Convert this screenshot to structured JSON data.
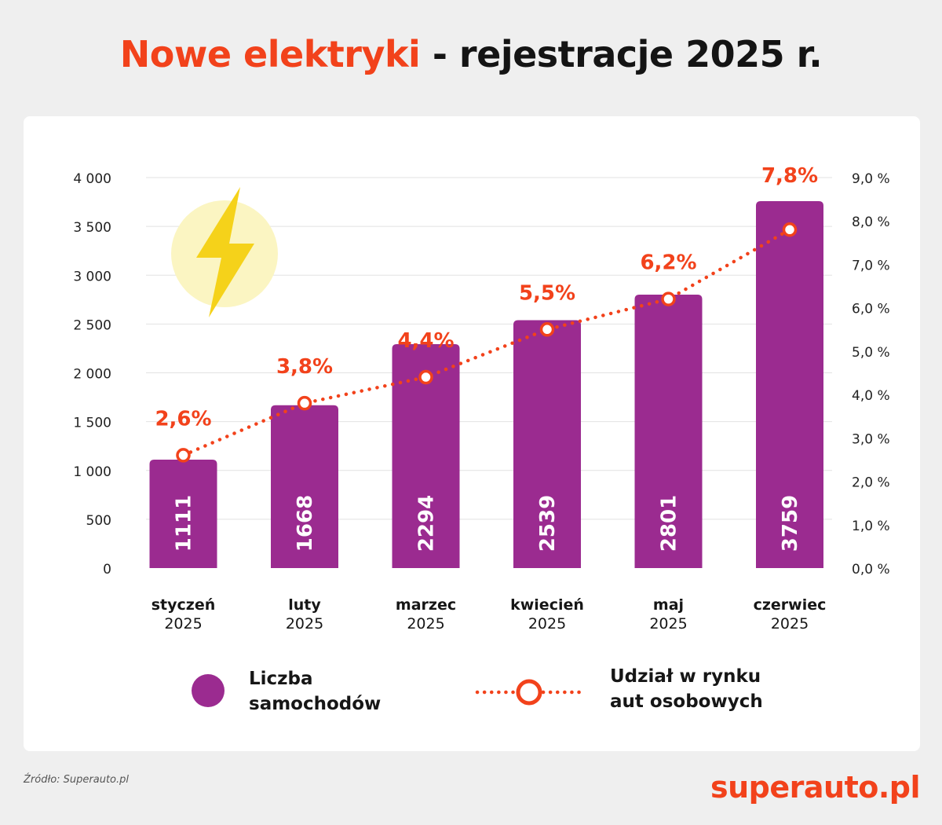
{
  "title": {
    "accent": "Nowe elektryki",
    "rest": " - rejestracje 2025 r."
  },
  "colors": {
    "bar": "#9b2b90",
    "line": "#f2421b",
    "accent": "#f2421b",
    "bolt": "#f5d21a",
    "bolt_circle": "#fbf5c2"
  },
  "icons": {
    "bolt": "lightning-bolt-icon"
  },
  "chart_data": {
    "type": "bar",
    "categories": [
      {
        "month": "styczeń",
        "year": "2025"
      },
      {
        "month": "luty",
        "year": "2025"
      },
      {
        "month": "marzec",
        "year": "2025"
      },
      {
        "month": "kwiecień",
        "year": "2025"
      },
      {
        "month": "maj",
        "year": "2025"
      },
      {
        "month": "czerwiec",
        "year": "2025"
      }
    ],
    "series": [
      {
        "name": "Liczba samochodów",
        "type": "bar",
        "axis": "left",
        "values": [
          1111,
          1668,
          2294,
          2539,
          2801,
          3759
        ],
        "labels": [
          "1111",
          "1668",
          "2294",
          "2539",
          "2801",
          "3759"
        ]
      },
      {
        "name": "Udział w rynku aut osobowych",
        "type": "line",
        "axis": "right",
        "values": [
          2.6,
          3.8,
          4.4,
          5.5,
          6.2,
          7.8
        ],
        "labels": [
          "2,6%",
          "3,8%",
          "4,4%",
          "5,5%",
          "6,2%",
          "7,8%"
        ]
      }
    ],
    "y_left": {
      "min": 0,
      "max": 4000,
      "ticks": [
        {
          "value": 0,
          "label": "0"
        },
        {
          "value": 500,
          "label": "500"
        },
        {
          "value": 1000,
          "label": "1 000"
        },
        {
          "value": 1500,
          "label": "1 500"
        },
        {
          "value": 2000,
          "label": "2 000"
        },
        {
          "value": 2500,
          "label": "2 500"
        },
        {
          "value": 3000,
          "label": "3 000"
        },
        {
          "value": 3500,
          "label": "3 500"
        },
        {
          "value": 4000,
          "label": "4 000"
        }
      ]
    },
    "y_right": {
      "min": 0,
      "max": 9,
      "ticks": [
        {
          "value": 0,
          "label": "0,0 %"
        },
        {
          "value": 1,
          "label": "1,0 %"
        },
        {
          "value": 2,
          "label": "2,0 %"
        },
        {
          "value": 3,
          "label": "3,0 %"
        },
        {
          "value": 4,
          "label": "4,0 %"
        },
        {
          "value": 5,
          "label": "5,0 %"
        },
        {
          "value": 6,
          "label": "6,0 %"
        },
        {
          "value": 7,
          "label": "7,0 %"
        },
        {
          "value": 8,
          "label": "8,0 %"
        },
        {
          "value": 9,
          "label": "9,0 %"
        }
      ]
    },
    "grid": true,
    "legend": [
      {
        "line1": "Liczba",
        "line2": "samochodów"
      },
      {
        "line1": "Udział w rynku",
        "line2": "aut osobowych"
      }
    ],
    "legend_position": "bottom"
  },
  "footer": {
    "source": "Źródło: Superauto.pl",
    "brand": "superauto.pl"
  }
}
